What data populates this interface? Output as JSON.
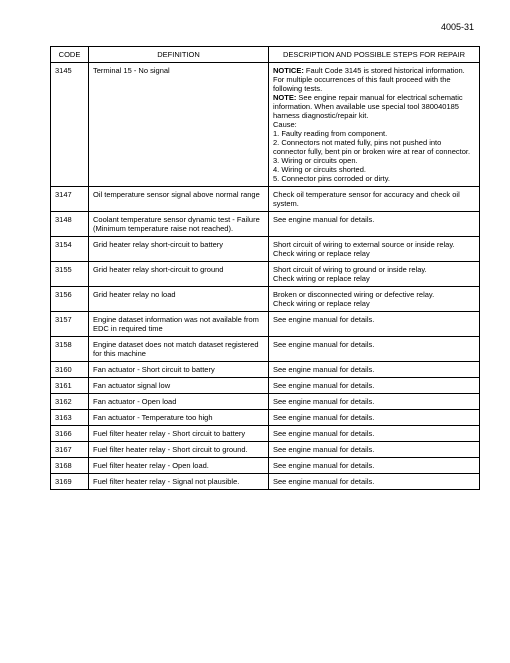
{
  "page_number": "4005-31",
  "headers": {
    "code": "CODE",
    "definition": "DEFINITION",
    "description": "DESCRIPTION AND POSSIBLE\nSTEPS FOR REPAIR"
  },
  "long_row": {
    "code": "3145",
    "definition": "Terminal 15 - No signal",
    "notice_label": "NOTICE:",
    "notice_text": " Fault Code 3145 is stored historical information. For multiple occurrences of this fault proceed with the following tests.",
    "note_label": "NOTE:",
    "note_text": " See engine repair manual for electrical schematic information. When available use special tool 380040185 harness diagnostic/repair kit.",
    "cause_label": "Cause:",
    "cause_1": "1. Faulty reading from component.",
    "cause_2": "2. Connectors not mated fully, pins not pushed into connector fully, bent pin or broken wire at rear of connector.",
    "cause_3": "3. Wiring or circuits open.",
    "cause_4": "4. Wiring or circuits shorted.",
    "cause_5": "5. Connector pins corroded or dirty."
  },
  "rows": [
    {
      "code": "3147",
      "definition": "Oil temperature sensor signal above normal range",
      "description": "Check oil temperature sensor for accuracy and check oil system."
    },
    {
      "code": "3148",
      "definition": "Coolant temperature sensor dynamic test - Failure (Minimum temperature raise not reached).",
      "description": "See engine manual for details."
    },
    {
      "code": "3154",
      "definition": "Grid heater relay short-circuit to battery",
      "description": "Short circuit of wiring to external source or inside relay.\nCheck wiring or replace relay"
    },
    {
      "code": "3155",
      "definition": "Grid heater relay short-circuit to ground",
      "description": "Short circuit of wiring to ground or inside relay.\nCheck wiring or replace relay"
    },
    {
      "code": "3156",
      "definition": "Grid heater relay no load",
      "description": "Broken or disconnected wiring or defective relay.\nCheck wiring or replace relay"
    },
    {
      "code": "3157",
      "definition": "Engine dataset information was not available from EDC in required time",
      "description": "See engine manual for details."
    },
    {
      "code": "3158",
      "definition": "Engine dataset does not match dataset registered for this machine",
      "description": "See engine manual for details."
    },
    {
      "code": "3160",
      "definition": "Fan actuator - Short circuit to battery",
      "description": "See engine manual for details."
    },
    {
      "code": "3161",
      "definition": "Fan actuator signal low",
      "description": "See engine manual for details."
    },
    {
      "code": "3162",
      "definition": "Fan actuator - Open load",
      "description": "See engine manual for details."
    },
    {
      "code": "3163",
      "definition": "Fan actuator - Temperature too high",
      "description": "See engine manual for details."
    },
    {
      "code": "3166",
      "definition": "Fuel filter heater relay - Short circuit to battery",
      "description": "See engine manual for details."
    },
    {
      "code": "3167",
      "definition": "Fuel filter heater relay - Short circuit to ground.",
      "description": "See engine manual for details."
    },
    {
      "code": "3168",
      "definition": "Fuel filter heater relay - Open load.",
      "description": "See engine manual for details."
    },
    {
      "code": "3169",
      "definition": "Fuel filter heater relay - Signal not plausible.",
      "description": "See engine manual for details."
    }
  ]
}
